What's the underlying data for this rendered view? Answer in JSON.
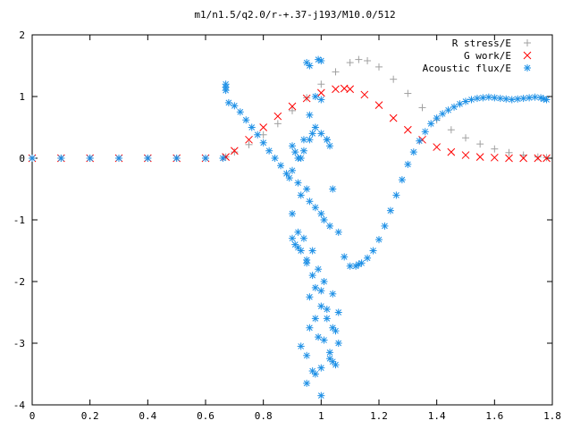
{
  "chart_data": {
    "type": "scatter",
    "title": "m1/n1.5/q2.0/r-+.37-j193/M10.0/512",
    "xlabel": "",
    "ylabel": "",
    "xlim": [
      0,
      1.8
    ],
    "ylim": [
      -4,
      2
    ],
    "x_ticks": [
      "0",
      "0.2",
      "0.4",
      "0.6",
      "0.8",
      "1",
      "1.2",
      "1.4",
      "1.6",
      "1.8"
    ],
    "y_ticks": [
      "2",
      "1",
      "0",
      "-1",
      "-2",
      "-3",
      "-4"
    ],
    "grid": false,
    "legend_position": "top-right",
    "series": [
      {
        "name": "R stress/E",
        "marker": "plus",
        "color": "#a0a0a0",
        "x": [
          0.0,
          0.1,
          0.2,
          0.3,
          0.4,
          0.5,
          0.6,
          0.67,
          0.7,
          0.75,
          0.8,
          0.85,
          0.9,
          0.95,
          1.0,
          1.05,
          1.1,
          1.13,
          1.16,
          1.2,
          1.25,
          1.3,
          1.35,
          1.4,
          1.45,
          1.5,
          1.55,
          1.6,
          1.65,
          1.7,
          1.75,
          1.78
        ],
        "y": [
          0,
          0,
          0,
          0,
          0,
          0,
          0,
          0.02,
          0.1,
          0.22,
          0.38,
          0.56,
          0.77,
          0.98,
          1.2,
          1.4,
          1.55,
          1.6,
          1.58,
          1.48,
          1.28,
          1.05,
          0.82,
          0.62,
          0.46,
          0.33,
          0.23,
          0.15,
          0.09,
          0.05,
          0.02,
          0.01
        ]
      },
      {
        "name": "G work/E",
        "marker": "cross",
        "color": "#ff0000",
        "x": [
          0.0,
          0.1,
          0.2,
          0.3,
          0.4,
          0.5,
          0.6,
          0.67,
          0.7,
          0.75,
          0.8,
          0.85,
          0.9,
          0.95,
          1.0,
          1.05,
          1.08,
          1.1,
          1.15,
          1.2,
          1.25,
          1.3,
          1.35,
          1.4,
          1.45,
          1.5,
          1.55,
          1.6,
          1.65,
          1.7,
          1.75,
          1.78
        ],
        "y": [
          0,
          0,
          0,
          0,
          0,
          0,
          0,
          0.02,
          0.12,
          0.3,
          0.5,
          0.68,
          0.84,
          0.97,
          1.06,
          1.12,
          1.13,
          1.12,
          1.03,
          0.86,
          0.65,
          0.46,
          0.3,
          0.18,
          0.1,
          0.05,
          0.02,
          0.01,
          0.0,
          0.0,
          0.0,
          0.0
        ]
      },
      {
        "name": "Acoustic flux/E",
        "marker": "star",
        "color": "#1e90e6",
        "x": [
          0.0,
          0.1,
          0.2,
          0.3,
          0.4,
          0.5,
          0.6,
          0.66,
          0.67,
          0.68,
          0.7,
          0.72,
          0.74,
          0.76,
          0.78,
          0.8,
          0.82,
          0.84,
          0.86,
          0.88,
          0.89,
          0.9,
          0.92,
          0.94,
          0.96,
          0.98,
          1.0,
          1.02,
          1.04,
          1.06,
          1.08,
          1.1,
          1.12,
          1.13,
          1.14,
          1.16,
          1.18,
          1.2,
          1.22,
          1.24,
          1.26,
          1.28,
          1.3,
          1.32,
          1.34,
          1.36,
          1.38,
          1.4,
          1.42,
          1.44,
          1.46,
          1.48,
          1.5,
          1.52,
          1.54,
          1.56,
          1.58,
          1.6,
          1.62,
          1.64,
          1.66,
          1.68,
          1.7,
          1.72,
          1.74,
          1.76,
          1.77,
          1.78,
          0.67,
          0.67,
          0.95,
          0.96,
          0.99,
          1.0,
          0.9,
          0.91,
          0.93,
          0.94,
          0.96,
          0.97,
          0.98,
          1.0,
          1.02,
          1.03,
          0.92,
          0.93,
          0.95,
          0.96,
          0.98,
          1.0,
          1.01,
          1.03,
          0.9,
          0.92,
          0.94,
          0.97,
          0.99,
          1.01,
          1.04,
          1.06,
          0.91,
          0.93,
          0.95,
          0.98,
          1.0,
          1.02,
          1.05,
          0.9,
          0.92,
          0.95,
          0.97,
          1.0,
          1.02,
          1.04,
          0.96,
          0.98,
          1.01,
          1.03,
          0.93,
          0.95,
          0.97,
          1.0,
          1.04,
          1.06,
          0.96,
          0.99,
          1.03,
          1.05,
          0.95,
          0.98,
          1.0
        ],
        "y": [
          0,
          0,
          0,
          0,
          0,
          0,
          0,
          0,
          1.15,
          0.9,
          0.85,
          0.75,
          0.62,
          0.5,
          0.38,
          0.25,
          0.12,
          0.0,
          -0.12,
          -0.25,
          -0.32,
          -0.2,
          0.0,
          0.3,
          0.7,
          1.0,
          0.95,
          0.3,
          -0.5,
          -1.2,
          -1.6,
          -1.75,
          -1.75,
          -1.72,
          -1.7,
          -1.62,
          -1.5,
          -1.32,
          -1.1,
          -0.85,
          -0.6,
          -0.35,
          -0.1,
          0.1,
          0.28,
          0.43,
          0.56,
          0.65,
          0.72,
          0.78,
          0.83,
          0.88,
          0.92,
          0.95,
          0.97,
          0.98,
          0.99,
          0.98,
          0.97,
          0.96,
          0.95,
          0.96,
          0.97,
          0.98,
          0.99,
          0.98,
          0.96,
          0.95,
          1.2,
          1.1,
          1.55,
          1.5,
          1.6,
          1.58,
          0.2,
          0.1,
          0.0,
          0.12,
          0.3,
          0.4,
          0.5,
          0.4,
          0.3,
          0.2,
          -0.4,
          -0.6,
          -0.5,
          -0.7,
          -0.8,
          -0.9,
          -1.0,
          -1.1,
          -0.9,
          -1.2,
          -1.3,
          -1.5,
          -1.8,
          -2.0,
          -2.2,
          -2.5,
          -1.4,
          -1.5,
          -1.7,
          -2.1,
          -2.4,
          -2.6,
          -2.8,
          -1.3,
          -1.45,
          -1.65,
          -1.9,
          -2.15,
          -2.45,
          -2.75,
          -2.25,
          -2.6,
          -2.95,
          -3.25,
          -3.05,
          -3.2,
          -3.45,
          -3.4,
          -3.3,
          -3.0,
          -2.75,
          -2.9,
          -3.15,
          -3.35,
          -3.65,
          -3.5,
          -3.85
        ]
      }
    ]
  }
}
